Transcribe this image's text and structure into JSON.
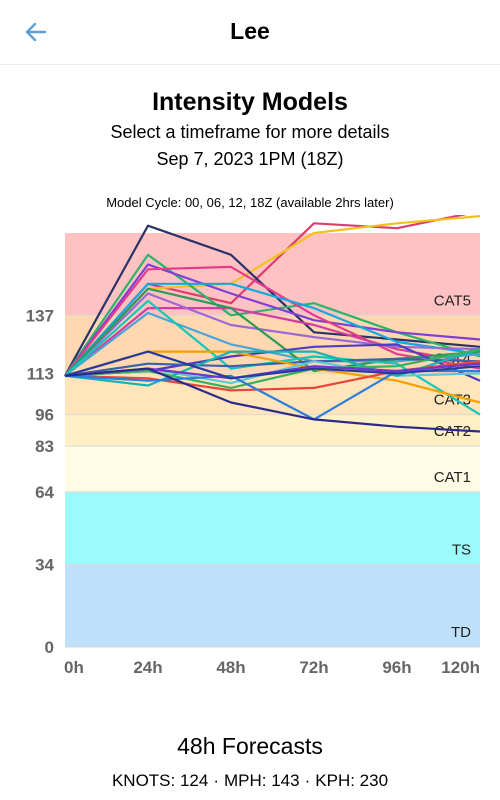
{
  "header": {
    "title": "Lee",
    "back_icon": "arrow-left-icon"
  },
  "page": {
    "title": "Intensity Models",
    "subtitle": "Select a timeframe for more details",
    "datetime": "Sep 7, 2023 1PM (18Z)",
    "model_cycle": "Model Cycle: 00, 06, 12, 18Z (available 2hrs later)"
  },
  "forecast": {
    "title": "48h Forecasts",
    "knots": "KNOTS: 124",
    "mph": "MPH: 143",
    "kph": "KPH: 230"
  },
  "chart_data": {
    "type": "line",
    "x": [
      0,
      24,
      48,
      72,
      96,
      120
    ],
    "tick_labels_x": [
      "0h",
      "24h",
      "48h",
      "72h",
      "96h",
      "120h"
    ],
    "yticks": [
      0,
      34,
      64,
      83,
      96,
      113,
      137
    ],
    "ylim": [
      0,
      171
    ],
    "bands": [
      {
        "label": "TD",
        "from": 0,
        "to": 34,
        "color": "#bfe0fb"
      },
      {
        "label": "TS",
        "from": 34,
        "to": 64,
        "color": "#9cfafb"
      },
      {
        "label": "CAT1",
        "from": 64,
        "to": 83,
        "color": "#fffbe5"
      },
      {
        "label": "CAT2",
        "from": 83,
        "to": 96,
        "color": "#fff0c6"
      },
      {
        "label": "CAT3",
        "from": 96,
        "to": 113,
        "color": "#ffe5b9"
      },
      {
        "label": "CAT4",
        "from": 113,
        "to": 137,
        "color": "#ffd7b1"
      },
      {
        "label": "CAT5",
        "from": 137,
        "to": 171,
        "color": "#ffc2c2"
      }
    ],
    "series": [
      {
        "color": "#dd3e6e",
        "values": [
          112,
          150,
          142,
          175,
          173,
          180
        ]
      },
      {
        "color": "#f2c21c",
        "values": [
          112,
          148,
          150,
          171,
          175,
          178
        ]
      },
      {
        "color": "#2a3268",
        "values": [
          112,
          174,
          162,
          130,
          127,
          124
        ]
      },
      {
        "color": "#2bb46a",
        "values": [
          112,
          162,
          137,
          142,
          130,
          120
        ]
      },
      {
        "color": "#7e3fd3",
        "values": [
          112,
          158,
          146,
          135,
          130,
          127
        ]
      },
      {
        "color": "#e43b8e",
        "values": [
          112,
          156,
          157,
          137,
          121,
          115
        ]
      },
      {
        "color": "#13a8e0",
        "values": [
          112,
          150,
          150,
          140,
          126,
          121
        ]
      },
      {
        "color": "#d13da0",
        "values": [
          112,
          140,
          140,
          133,
          123,
          117
        ]
      },
      {
        "color": "#4aa4d8",
        "values": [
          112,
          138,
          125,
          118,
          118,
          121
        ]
      },
      {
        "color": "#9c68d8",
        "values": [
          112,
          146,
          133,
          128,
          124,
          123
        ]
      },
      {
        "color": "#2e9a56",
        "values": [
          112,
          148,
          140,
          114,
          119,
          122
        ]
      },
      {
        "color": "#14c5b8",
        "values": [
          112,
          143,
          115,
          120,
          117,
          96
        ]
      },
      {
        "color": "#4f3cc0",
        "values": [
          112,
          114,
          120,
          124,
          125,
          110
        ]
      },
      {
        "color": "#3a62a8",
        "values": [
          112,
          117,
          116,
          118,
          119,
          118
        ]
      },
      {
        "color": "#f6a000",
        "values": [
          112,
          122,
          122,
          115,
          110,
          101
        ]
      },
      {
        "color": "#5fc7d9",
        "values": [
          112,
          115,
          109,
          118,
          112,
          113
        ]
      },
      {
        "color": "#16b4b1",
        "values": [
          112,
          108,
          122,
          122,
          112,
          123
        ]
      },
      {
        "color": "#e7463e",
        "values": [
          112,
          111,
          106,
          107,
          114,
          118
        ]
      },
      {
        "color": "#3bb05a",
        "values": [
          112,
          114,
          107,
          115,
          116,
          123
        ]
      },
      {
        "color": "#2a7de1",
        "values": [
          112,
          110,
          112,
          94,
          114,
          114
        ]
      },
      {
        "color": "#6d36cc",
        "values": [
          112,
          115,
          111,
          116,
          114,
          117
        ]
      },
      {
        "color": "#283c9c",
        "values": [
          112,
          122,
          111,
          115,
          113,
          116
        ]
      },
      {
        "color": "#2a2a8c",
        "values": [
          112,
          115,
          101,
          94,
          91,
          89
        ]
      }
    ]
  }
}
